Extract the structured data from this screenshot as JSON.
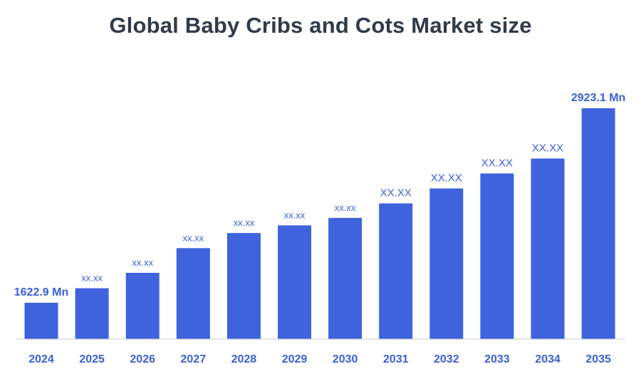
{
  "chart_data": {
    "type": "bar",
    "title": "Global Baby Cribs and Cots Market size",
    "categories": [
      "2024",
      "2025",
      "2026",
      "2027",
      "2028",
      "2029",
      "2030",
      "2031",
      "2032",
      "2033",
      "2034",
      "2035"
    ],
    "values": [
      1622.9,
      1720,
      1823,
      1988,
      2089,
      2140,
      2190,
      2287,
      2387,
      2487,
      2587,
      2923.1
    ],
    "data_labels": [
      "1622.9 Mn",
      "xx.xx",
      "xx.xx",
      "xx.xx",
      "xx.xx",
      "xx.xx",
      "xx.xx",
      "XX.XX",
      "XX.XX",
      "XX.XX",
      "XX.XX",
      "2923.1 Mn"
    ],
    "xlabel": "",
    "ylabel": "",
    "ylim": [
      1380,
      3180
    ],
    "bar_color": "#3f63dd",
    "label_color": "#3a5fd8",
    "axis_color": "#cfcfcf",
    "grid": false
  }
}
